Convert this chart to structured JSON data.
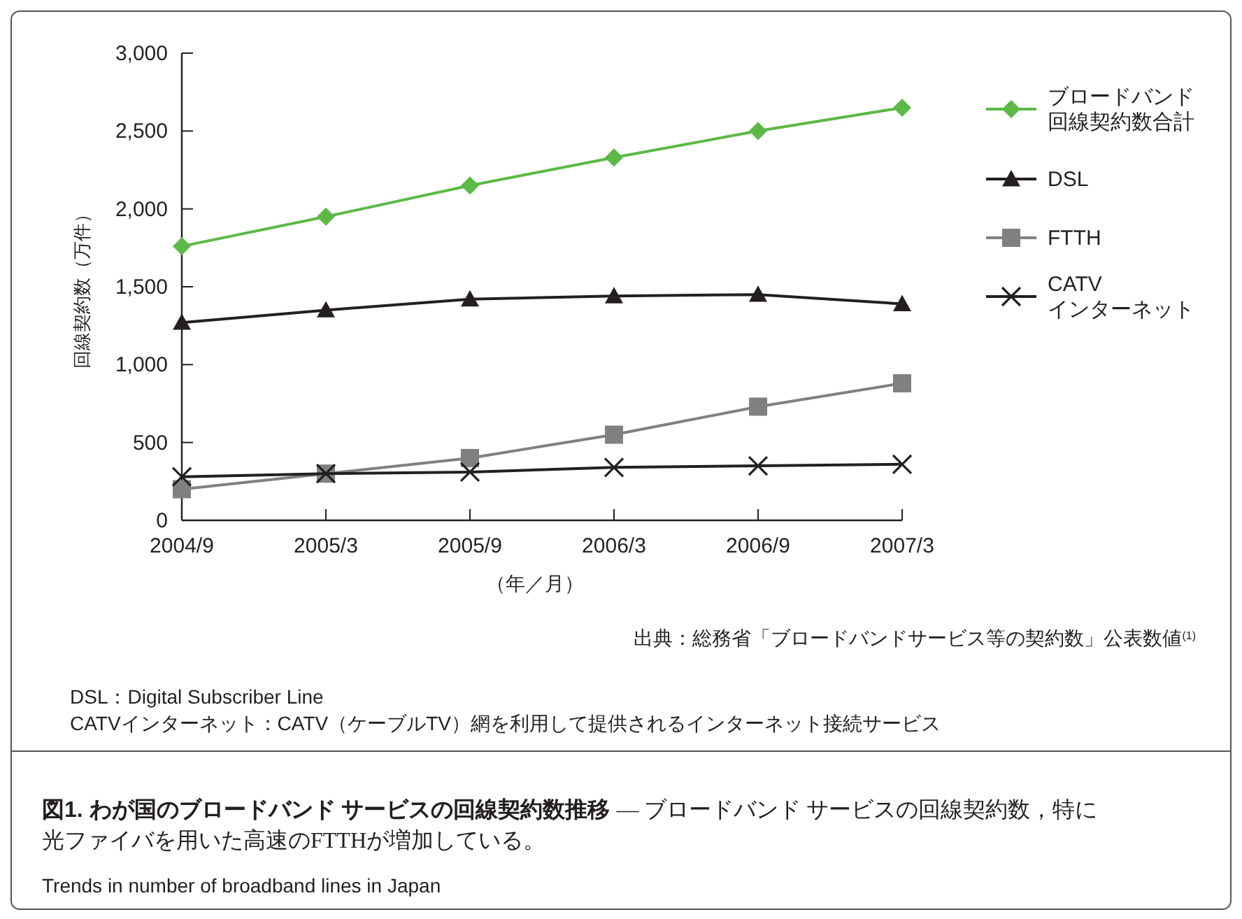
{
  "chart_data": {
    "type": "line",
    "title": "図1. わが国のブロードバンド サービスの回線契約数推移",
    "subtitle": "— ブロードバンド サービスの回線契約数，特に光ファイバを用いた高速のFTTHが増加している。",
    "xlabel": "（年／月）",
    "ylabel": "回線契約数（万件）",
    "categories": [
      "2004/9",
      "2005/3",
      "2005/9",
      "2006/3",
      "2006/9",
      "2007/3"
    ],
    "series": [
      {
        "name": "ブロードバンド回線契約数合計",
        "color": "#5cb946",
        "marker": "diamond",
        "values": [
          1760,
          1950,
          2150,
          2330,
          2500,
          2650
        ]
      },
      {
        "name": "DSL",
        "color": "#231f20",
        "marker": "triangle",
        "values": [
          1270,
          1350,
          1420,
          1440,
          1450,
          1390
        ]
      },
      {
        "name": "FTTH",
        "color": "#808080",
        "marker": "square",
        "values": [
          200,
          300,
          400,
          550,
          730,
          880
        ]
      },
      {
        "name": "CATVインターネット",
        "color": "#231f20",
        "marker": "cross",
        "values": [
          280,
          300,
          310,
          340,
          350,
          360
        ]
      }
    ],
    "ylim": [
      0,
      3000
    ],
    "yticks": [
      {
        "value": 0,
        "label": "0"
      },
      {
        "value": 500,
        "label": "500"
      },
      {
        "value": 1000,
        "label": "1,000"
      },
      {
        "value": 1500,
        "label": "1,500"
      },
      {
        "value": 2000,
        "label": "2,000"
      },
      {
        "value": 2500,
        "label": "2,500"
      },
      {
        "value": 3000,
        "label": "3,000"
      }
    ],
    "grid": false,
    "legend": "right",
    "line_style": "solid",
    "annotations": [
      "出典：総務省「ブロードバンドサービス等の契約数」公表数値$^{(1)}$",
      "DSL：Digital Subscriber Line",
      "CATVインターネット：CATV（ケーブルTV）網を利用して提供されるインターネット接続サービス",
      "Trends in number of broadband lines in Japan"
    ]
  }
}
